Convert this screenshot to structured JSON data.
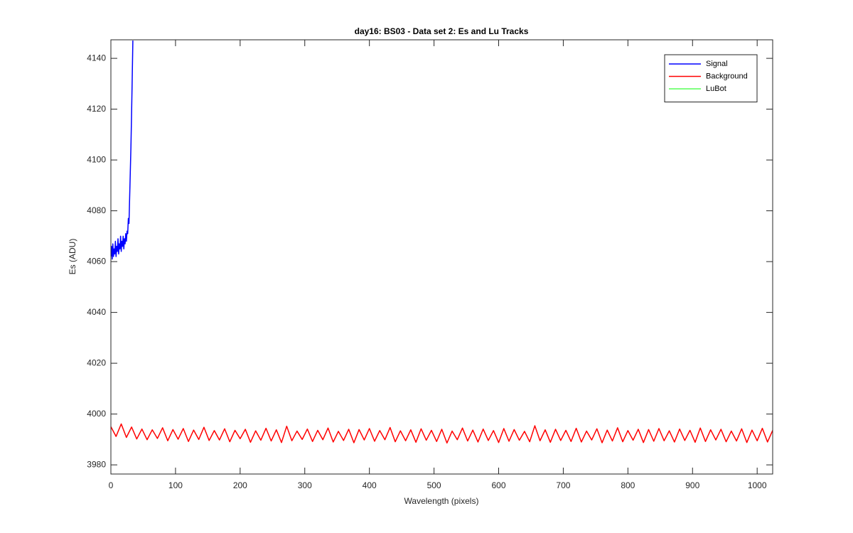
{
  "chart_data": {
    "type": "line",
    "title": "day16: BS03 - Data set 2: Es and Lu Tracks",
    "x_label": "Wavelength (pixels)",
    "y_label": "Es (ADU)",
    "xlim": [
      0,
      1024
    ],
    "ylim": [
      3976.4,
      4147.3
    ],
    "xticks": [
      0,
      100,
      200,
      300,
      400,
      500,
      600,
      700,
      800,
      900,
      1000
    ],
    "yticks": [
      3980,
      4000,
      4020,
      4040,
      4060,
      4080,
      4100,
      4120,
      4140
    ],
    "grid": false,
    "legend": "top-right",
    "series": [
      {
        "name": "Signal",
        "color": "#0000ff",
        "x": [
          0,
          1,
          2,
          3,
          4,
          5,
          6,
          7,
          8,
          9,
          10,
          11,
          12,
          13,
          14,
          15,
          16,
          17,
          18,
          19,
          20,
          21,
          22,
          23,
          24,
          25,
          26,
          27,
          28,
          29,
          30,
          31,
          32,
          33,
          34
        ],
        "values": [
          4062,
          4066,
          4061,
          4067,
          4062,
          4065,
          4063,
          4068,
          4062,
          4066,
          4064,
          4069,
          4063,
          4067,
          4065,
          4070,
          4064,
          4068,
          4066,
          4070,
          4065,
          4069,
          4067,
          4071,
          4068,
          4072,
          4071,
          4077,
          4075,
          4085,
          4095,
          4105,
          4118,
          4132,
          4147
        ]
      },
      {
        "name": "Background",
        "color": "#ff0000",
        "x": [
          0,
          8,
          16,
          24,
          32,
          40,
          48,
          56,
          64,
          72,
          80,
          88,
          96,
          104,
          112,
          120,
          128,
          136,
          144,
          152,
          160,
          168,
          176,
          184,
          192,
          200,
          208,
          216,
          224,
          232,
          240,
          248,
          256,
          264,
          272,
          280,
          288,
          296,
          304,
          312,
          320,
          328,
          336,
          344,
          352,
          360,
          368,
          376,
          384,
          392,
          400,
          408,
          416,
          424,
          432,
          440,
          448,
          456,
          464,
          472,
          480,
          488,
          496,
          504,
          512,
          520,
          528,
          536,
          544,
          552,
          560,
          568,
          576,
          584,
          592,
          600,
          608,
          616,
          624,
          632,
          640,
          648,
          656,
          664,
          672,
          680,
          688,
          696,
          704,
          712,
          720,
          728,
          736,
          744,
          752,
          760,
          768,
          776,
          784,
          792,
          800,
          808,
          816,
          824,
          832,
          840,
          848,
          856,
          864,
          872,
          880,
          888,
          896,
          904,
          912,
          920,
          928,
          936,
          944,
          952,
          960,
          968,
          976,
          984,
          992,
          1000,
          1008,
          1016,
          1024
        ],
        "values": [
          3995.0,
          3991.2,
          3996.1,
          3990.8,
          3994.9,
          3990.2,
          3994.1,
          3989.9,
          3993.8,
          3990.4,
          3994.6,
          3989.5,
          3993.9,
          3990.1,
          3994.3,
          3989.2,
          3993.7,
          3990.0,
          3994.8,
          3989.6,
          3993.5,
          3989.8,
          3994.2,
          3989.1,
          3993.6,
          3990.3,
          3994.0,
          3988.9,
          3993.4,
          3989.7,
          3994.4,
          3989.4,
          3993.8,
          3988.8,
          3995.2,
          3989.5,
          3993.3,
          3990.0,
          3994.1,
          3989.2,
          3993.6,
          3989.9,
          3994.5,
          3989.0,
          3993.2,
          3989.6,
          3994.0,
          3988.7,
          3993.9,
          3989.8,
          3994.3,
          3989.3,
          3993.5,
          3989.9,
          3994.7,
          3989.1,
          3993.4,
          3989.5,
          3993.8,
          3988.9,
          3994.2,
          3989.7,
          3993.6,
          3989.2,
          3994.0,
          3988.6,
          3993.3,
          3989.9,
          3994.5,
          3989.4,
          3993.7,
          3989.0,
          3994.1,
          3989.6,
          3993.5,
          3988.8,
          3994.3,
          3989.3,
          3993.9,
          3989.7,
          3993.2,
          3989.1,
          3995.4,
          3989.5,
          3993.8,
          3988.9,
          3994.0,
          3989.6,
          3993.6,
          3989.2,
          3994.4,
          3989.0,
          3993.3,
          3989.8,
          3994.2,
          3988.7,
          3993.7,
          3989.4,
          3994.6,
          3989.1,
          3993.5,
          3989.7,
          3994.0,
          3988.8,
          3993.9,
          3989.3,
          3994.3,
          3989.5,
          3993.4,
          3989.0,
          3994.1,
          3989.6,
          3993.6,
          3988.9,
          3994.5,
          3989.2,
          3993.8,
          3989.8,
          3994.0,
          3989.1,
          3993.3,
          3989.4,
          3994.2,
          3988.8,
          3993.7,
          3989.5,
          3994.4,
          3989.0,
          3993.6
        ]
      },
      {
        "name": "LuBot",
        "color": "#00ff00",
        "x": [],
        "values": []
      }
    ]
  }
}
